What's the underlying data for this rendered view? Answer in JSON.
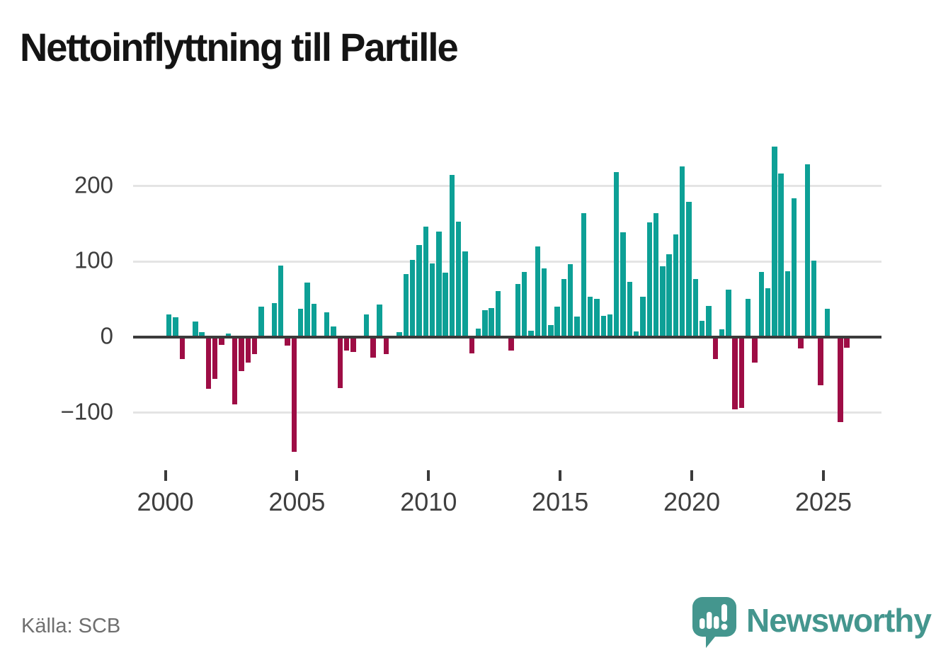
{
  "title": "Nettoinflyttning till Partille",
  "source": {
    "label": "Källa: SCB"
  },
  "branding": {
    "name": "Newsworthy",
    "color": "#44968e",
    "icon": "newsworthy-speech-bubble-chart-icon"
  },
  "chart_data": {
    "type": "bar",
    "title": "Nettoinflyttning till Partille",
    "frequency": "quarterly",
    "categories": [
      "2000 Q1",
      "2000 Q2",
      "2000 Q3",
      "2000 Q4",
      "2001 Q1",
      "2001 Q2",
      "2001 Q3",
      "2001 Q4",
      "2002 Q1",
      "2002 Q2",
      "2002 Q3",
      "2002 Q4",
      "2003 Q1",
      "2003 Q2",
      "2003 Q3",
      "2003 Q4",
      "2004 Q1",
      "2004 Q2",
      "2004 Q3",
      "2004 Q4",
      "2005 Q1",
      "2005 Q2",
      "2005 Q3",
      "2005 Q4",
      "2006 Q1",
      "2006 Q2",
      "2006 Q3",
      "2006 Q4",
      "2007 Q1",
      "2007 Q2",
      "2007 Q3",
      "2007 Q4",
      "2008 Q1",
      "2008 Q2",
      "2008 Q3",
      "2008 Q4",
      "2009 Q1",
      "2009 Q2",
      "2009 Q3",
      "2009 Q4",
      "2010 Q1",
      "2010 Q2",
      "2010 Q3",
      "2010 Q4",
      "2011 Q1",
      "2011 Q2",
      "2011 Q3",
      "2011 Q4",
      "2012 Q1",
      "2012 Q2",
      "2012 Q3",
      "2012 Q4",
      "2013 Q1",
      "2013 Q2",
      "2013 Q3",
      "2013 Q4",
      "2014 Q1",
      "2014 Q2",
      "2014 Q3",
      "2014 Q4",
      "2015 Q1",
      "2015 Q2",
      "2015 Q3",
      "2015 Q4",
      "2016 Q1",
      "2016 Q2",
      "2016 Q3",
      "2016 Q4",
      "2017 Q1",
      "2017 Q2",
      "2017 Q3",
      "2017 Q4",
      "2018 Q1",
      "2018 Q2",
      "2018 Q3",
      "2018 Q4",
      "2019 Q1",
      "2019 Q2",
      "2019 Q3",
      "2019 Q4",
      "2020 Q1",
      "2020 Q2",
      "2020 Q3",
      "2020 Q4",
      "2021 Q1",
      "2021 Q2",
      "2021 Q3",
      "2021 Q4",
      "2022 Q1",
      "2022 Q2",
      "2022 Q3",
      "2022 Q4",
      "2023 Q1",
      "2023 Q2",
      "2023 Q3",
      "2023 Q4",
      "2024 Q1",
      "2024 Q2",
      "2024 Q3",
      "2024 Q4",
      "2025 Q1",
      "2025 Q2",
      "2025 Q3",
      "2025 Q4"
    ],
    "values": [
      28,
      24,
      -27,
      0,
      19,
      5,
      -67,
      -53,
      -8,
      3,
      -87,
      -43,
      -32,
      -21,
      38,
      0,
      43,
      93,
      -9,
      -150,
      36,
      70,
      42,
      0,
      31,
      12,
      -66,
      -16,
      -18,
      0,
      28,
      -25,
      41,
      -21,
      0,
      5,
      82,
      100,
      120,
      144,
      96,
      138,
      83,
      213,
      151,
      112,
      -20,
      9,
      34,
      37,
      59,
      0,
      -16,
      68,
      84,
      7,
      118,
      89,
      14,
      38,
      75,
      95,
      25,
      162,
      52,
      49,
      26,
      28,
      217,
      137,
      71,
      6,
      52,
      150,
      162,
      92,
      108,
      134,
      224,
      177,
      75,
      20,
      39,
      -27,
      8,
      61,
      -94,
      -92,
      49,
      -32,
      84,
      63,
      250,
      215,
      85,
      182,
      -13,
      227,
      99,
      -62,
      36,
      0,
      -111,
      -12
    ],
    "bar_colors": {
      "positive": "#0da096",
      "negative": "#9e0d45"
    },
    "yticks": [
      200,
      100,
      0,
      -100
    ],
    "ytick_labels": [
      "200",
      "100",
      "0",
      "−100"
    ],
    "xtick_years": [
      "2000",
      "2005",
      "2010",
      "2015",
      "2020",
      "2025"
    ],
    "ylim": [
      -160,
      260
    ],
    "grid": "horizontal",
    "legend": "none"
  }
}
